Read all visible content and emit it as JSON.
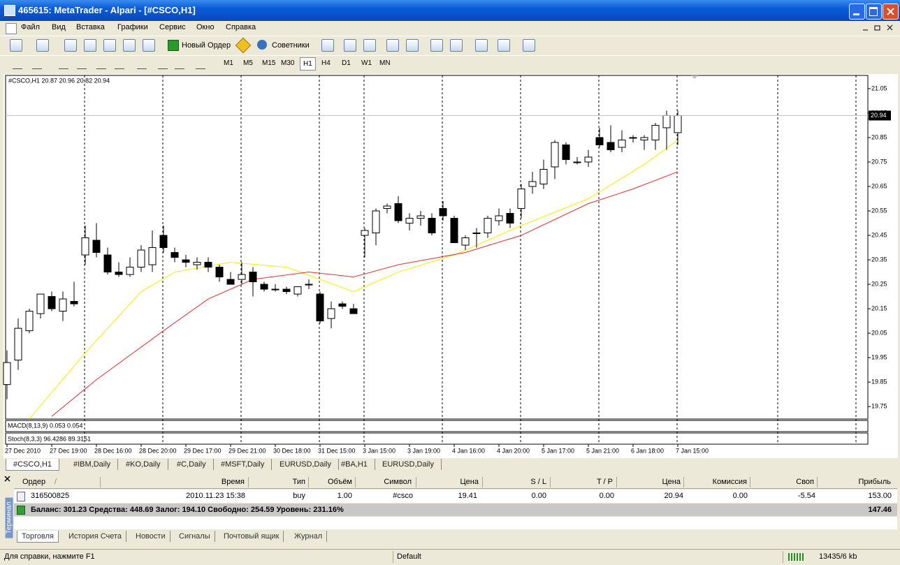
{
  "window": {
    "title": "465615: MetaTrader - Alpari - [#CSCO,H1]"
  },
  "menu": [
    "Файл",
    "Вид",
    "Вставка",
    "Графики",
    "Сервис",
    "Окно",
    "Справка"
  ],
  "toolbar": {
    "new_order": "Новый Ордер",
    "experts": "Советники"
  },
  "timeframes": [
    "M1",
    "M5",
    "M15",
    "M30",
    "H1",
    "H4",
    "D1",
    "W1",
    "MN"
  ],
  "active_timeframe": "H1",
  "chart": {
    "type": "candlestick",
    "label": "#CSCO,H1  20.87 20.96 20.82 20.94",
    "open": [
      19.84,
      19.94,
      20.06,
      20.13,
      20.2,
      20.14,
      20.18,
      20.37,
      20.43,
      20.37,
      20.3,
      20.29,
      20.32,
      20.33,
      20.45,
      20.38,
      20.35,
      20.33,
      20.34,
      20.32,
      20.27,
      20.27,
      20.3,
      20.25,
      20.23,
      20.23,
      20.21,
      20.25,
      20.21,
      20.11,
      20.17,
      20.15,
      20.45,
      20.46,
      20.56,
      20.58,
      20.5,
      20.52,
      20.52,
      20.56,
      20.52,
      20.41,
      20.46,
      20.46,
      20.51,
      20.54,
      20.56,
      20.65,
      20.66,
      20.73,
      20.82,
      20.75,
      20.75,
      20.85,
      20.83,
      20.81,
      20.85,
      20.84,
      20.84,
      20.89,
      20.87
    ],
    "high": [
      19.98,
      20.11,
      20.15,
      20.21,
      20.22,
      20.22,
      20.26,
      20.49,
      20.5,
      20.4,
      20.34,
      20.36,
      20.41,
      20.47,
      20.49,
      20.4,
      20.37,
      20.36,
      20.36,
      20.33,
      20.3,
      20.34,
      20.32,
      20.26,
      20.25,
      20.24,
      20.24,
      20.27,
      20.22,
      20.18,
      20.18,
      20.17,
      20.48,
      20.56,
      20.58,
      20.61,
      20.54,
      20.55,
      20.54,
      20.59,
      20.53,
      20.45,
      20.48,
      20.53,
      20.56,
      20.56,
      20.66,
      20.71,
      20.76,
      20.84,
      20.83,
      20.77,
      20.8,
      20.89,
      20.9,
      20.88,
      20.86,
      20.86,
      20.91,
      20.96,
      20.96
    ],
    "low": [
      19.78,
      19.9,
      20.05,
      20.11,
      20.14,
      20.1,
      20.16,
      20.33,
      20.36,
      20.29,
      20.28,
      20.28,
      20.3,
      20.3,
      20.38,
      20.34,
      20.32,
      20.31,
      20.3,
      20.26,
      20.25,
      20.25,
      20.2,
      20.22,
      20.22,
      20.21,
      20.2,
      20.23,
      20.09,
      20.07,
      20.15,
      20.13,
      20.36,
      20.41,
      20.54,
      20.5,
      20.47,
      20.49,
      20.45,
      20.51,
      20.42,
      20.39,
      20.4,
      20.44,
      20.49,
      20.48,
      20.52,
      20.62,
      20.64,
      20.68,
      20.74,
      20.74,
      20.73,
      20.81,
      20.79,
      20.79,
      20.83,
      20.8,
      20.8,
      20.8,
      20.82
    ],
    "close": [
      19.93,
      20.07,
      20.14,
      20.21,
      20.15,
      20.19,
      20.17,
      20.44,
      20.38,
      20.3,
      20.29,
      20.32,
      20.39,
      20.4,
      20.4,
      20.36,
      20.34,
      20.34,
      20.32,
      20.28,
      20.25,
      20.29,
      20.26,
      20.23,
      20.23,
      20.22,
      20.24,
      20.25,
      20.1,
      20.15,
      20.16,
      20.13,
      20.47,
      20.55,
      20.57,
      20.51,
      20.52,
      20.53,
      20.46,
      20.53,
      20.42,
      20.44,
      20.46,
      20.52,
      20.53,
      20.5,
      20.64,
      20.67,
      20.72,
      20.83,
      20.76,
      20.75,
      20.77,
      20.82,
      20.8,
      20.84,
      20.85,
      20.85,
      20.9,
      20.94,
      20.94
    ],
    "series": [
      {
        "color": "#f2f200",
        "x": [
          2,
          7,
          12,
          15,
          20,
          25,
          31,
          35,
          40,
          46,
          52,
          57,
          60
        ],
        "values": [
          19.7,
          19.97,
          20.22,
          20.3,
          20.34,
          20.32,
          20.22,
          20.3,
          20.37,
          20.49,
          20.6,
          20.74,
          20.84
        ]
      },
      {
        "color": "#e03030",
        "x": [
          4,
          8,
          14,
          18,
          22,
          27,
          31,
          35,
          41,
          46,
          52,
          56,
          60
        ],
        "values": [
          19.71,
          19.86,
          20.06,
          20.19,
          20.27,
          20.3,
          20.28,
          20.33,
          20.38,
          20.45,
          20.58,
          20.64,
          20.71
        ]
      }
    ],
    "ylim": [
      19.699,
      21.104
    ],
    "yticks": [
      21.05,
      20.95,
      20.85,
      20.75,
      20.65,
      20.55,
      20.45,
      20.35,
      20.25,
      20.15,
      20.05,
      19.95,
      19.85,
      19.75
    ],
    "xlim": [
      0,
      60
    ],
    "xticks": [
      {
        "value": 0,
        "label": "27 Dec 2010"
      },
      {
        "value": 4,
        "label": "27 Dec 19:00"
      },
      {
        "value": 8,
        "label": "28 Dec 16:00"
      },
      {
        "value": 12,
        "label": "28 Dec 20:00"
      },
      {
        "value": 16,
        "label": "29 Dec 17:00"
      },
      {
        "value": 20,
        "label": "29 Dec 21:00"
      },
      {
        "value": 24,
        "label": "30 Dec 18:00"
      },
      {
        "value": 28,
        "label": "31 Dec 15:00"
      },
      {
        "value": 32,
        "label": "3 Jan 15:00"
      },
      {
        "value": 36,
        "label": "3 Jan 19:00"
      },
      {
        "value": 40,
        "label": "4 Jan 16:00"
      },
      {
        "value": 44,
        "label": "4 Jan 20:00"
      },
      {
        "value": 48,
        "label": "5 Jan 17:00"
      },
      {
        "value": 52,
        "label": "5 Jan 21:00"
      },
      {
        "value": 56,
        "label": "6 Jan 18:00"
      },
      {
        "value": 60,
        "label": "7 Jan 15:00"
      }
    ],
    "macd_label": "MACD(8,13,9) 0.053 0.054",
    "stoch_label": "Stoch(8,3,3) 96.4286 89.3151"
  },
  "chart_tabs": [
    "#CSCO,H1",
    "#IBM,Daily",
    "#KO,Daily",
    "#C,Daily",
    "#MSFT,Daily",
    "EURUSD,Daily",
    "#BA,H1",
    "EURUSD,Daily"
  ],
  "terminal": {
    "side_label": "Терминал",
    "sort_mark": "/",
    "columns": [
      "Ордер",
      "Время",
      "Тип",
      "Объём",
      "Символ",
      "Цена",
      "S / L",
      "T / P",
      "Цена",
      "Комиссия",
      "Своп",
      "Прибыль"
    ],
    "row": [
      "316500825",
      "2010.11.23 15:38",
      "buy",
      "1.00",
      "#csco",
      "19.41",
      "0.00",
      "0.00",
      "20.94",
      "0.00",
      "-5.54",
      "153.00"
    ],
    "summary": "Баланс: 301.23  Средства: 448.69  Залог: 194.10  Свободно: 254.59  Уровень: 231.16%",
    "summary_profit": "147.46",
    "tabs": [
      "Торговля",
      "История Счета",
      "Новости",
      "Сигналы",
      "Почтовый ящик",
      "Журнал"
    ]
  },
  "status": {
    "help": "Для справки, нажмите F1",
    "profile": "Default",
    "traffic": "13435/6 kb"
  }
}
